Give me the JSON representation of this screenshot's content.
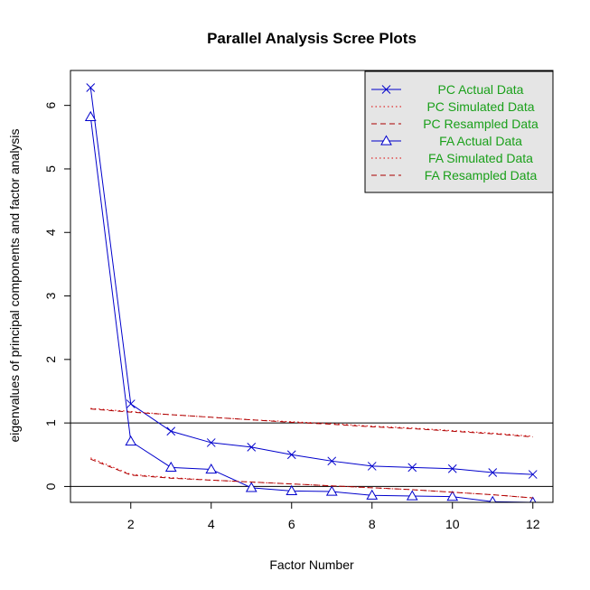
{
  "chart_data": {
    "type": "line",
    "title": "Parallel Analysis Scree Plots",
    "xlabel": "Factor Number",
    "ylabel": "eigenvalues of principal components and factor analysis",
    "xlim": [
      0.5,
      12.5
    ],
    "ylim": [
      -0.25,
      6.55
    ],
    "x_ticks": [
      2,
      4,
      6,
      8,
      10,
      12
    ],
    "y_ticks": [
      0,
      1,
      2,
      3,
      4,
      5,
      6
    ],
    "reference_lines": [
      0,
      1
    ],
    "legend_position": "top-right",
    "x": [
      1,
      2,
      3,
      4,
      5,
      6,
      7,
      8,
      9,
      10,
      11,
      12
    ],
    "series": [
      {
        "name": "PC  Actual Data",
        "color": "#0000cc",
        "line": "solid",
        "marker": "x",
        "values": [
          6.28,
          1.3,
          0.87,
          0.69,
          0.62,
          0.5,
          0.4,
          0.32,
          0.3,
          0.28,
          0.22,
          0.19
        ]
      },
      {
        "name": "PC  Simulated Data",
        "color": "#dd0000",
        "line": "dotted",
        "marker": "none",
        "values": [
          1.23,
          1.18,
          1.13,
          1.09,
          1.05,
          1.02,
          0.99,
          0.95,
          0.92,
          0.88,
          0.84,
          0.79
        ]
      },
      {
        "name": "PC  Resampled Data",
        "color": "#aa0000",
        "line": "dashed",
        "marker": "none",
        "values": [
          1.22,
          1.17,
          1.13,
          1.09,
          1.05,
          1.01,
          0.98,
          0.94,
          0.91,
          0.87,
          0.83,
          0.78
        ]
      },
      {
        "name": "FA  Actual Data",
        "color": "#0000cc",
        "line": "solid",
        "marker": "triangle",
        "values": [
          5.82,
          0.71,
          0.3,
          0.27,
          -0.02,
          -0.07,
          -0.08,
          -0.14,
          -0.15,
          -0.16,
          -0.24,
          -0.25
        ]
      },
      {
        "name": "FA  Simulated Data",
        "color": "#dd0000",
        "line": "dotted",
        "marker": "none",
        "values": [
          0.45,
          0.19,
          0.14,
          0.1,
          0.07,
          0.04,
          0.01,
          -0.02,
          -0.05,
          -0.09,
          -0.13,
          -0.18
        ]
      },
      {
        "name": "FA  Resampled Data",
        "color": "#aa0000",
        "line": "dashed",
        "marker": "none",
        "values": [
          0.43,
          0.18,
          0.13,
          0.1,
          0.07,
          0.04,
          0.01,
          -0.02,
          -0.05,
          -0.09,
          -0.13,
          -0.18
        ]
      }
    ]
  }
}
